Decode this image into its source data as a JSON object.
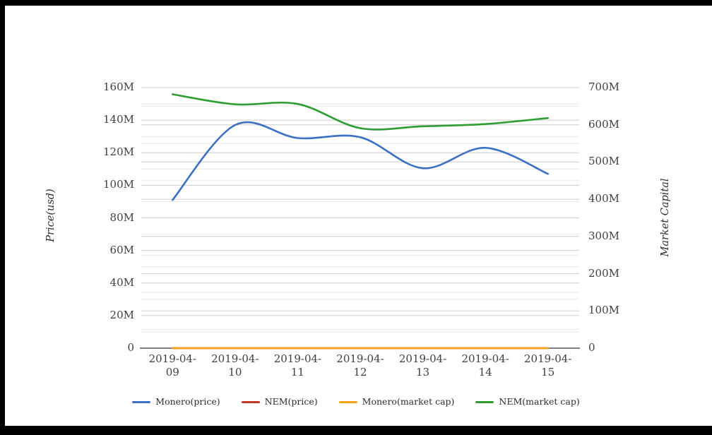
{
  "page": {
    "background": "#ffffff",
    "frame_color": "#000000"
  },
  "chart_data": {
    "type": "line",
    "smooth": true,
    "title": "",
    "values_unit": "millions",
    "categories": [
      "2019-04-09",
      "2019-04-10",
      "2019-04-11",
      "2019-04-12",
      "2019-04-13",
      "2019-04-14",
      "2019-04-15"
    ],
    "series": [
      {
        "name": "Monero(price)",
        "axis": "left",
        "color": "#3c70c2",
        "values": [
          91,
          137,
          129,
          129.5,
          110.5,
          123,
          107
        ]
      },
      {
        "name": "NEM(price)",
        "axis": "left",
        "color": "#c23522",
        "values": [
          0,
          0,
          0,
          0,
          0,
          0,
          0
        ]
      },
      {
        "name": "Monero(market cap)",
        "axis": "right",
        "color": "#f4a118",
        "values": [
          0,
          0,
          0,
          0,
          0,
          0,
          0
        ]
      },
      {
        "name": "NEM(market cap)",
        "axis": "right",
        "color": "#2e9d33",
        "values": [
          682,
          655,
          656,
          591,
          596,
          602,
          618
        ]
      }
    ],
    "left_axis": {
      "title": "Price(usd)",
      "min": 0,
      "max": 160,
      "major_step": 20,
      "minor_step": 10,
      "tick_labels": [
        "0",
        "20M",
        "40M",
        "60M",
        "80M",
        "100M",
        "120M",
        "140M",
        "160M"
      ]
    },
    "right_axis": {
      "title": "Market Capital",
      "min": 0,
      "max": 700,
      "major_step": 100,
      "minor_step": 50,
      "tick_labels": [
        "0",
        "100M",
        "200M",
        "300M",
        "400M",
        "500M",
        "600M",
        "700M"
      ]
    },
    "legend": {
      "position": "bottom"
    },
    "grid": {
      "major_color": "#cccccc",
      "minor_color": "#e8e8e8",
      "axis_line_color": "#333333"
    },
    "text_color": "#3f3f3f"
  }
}
